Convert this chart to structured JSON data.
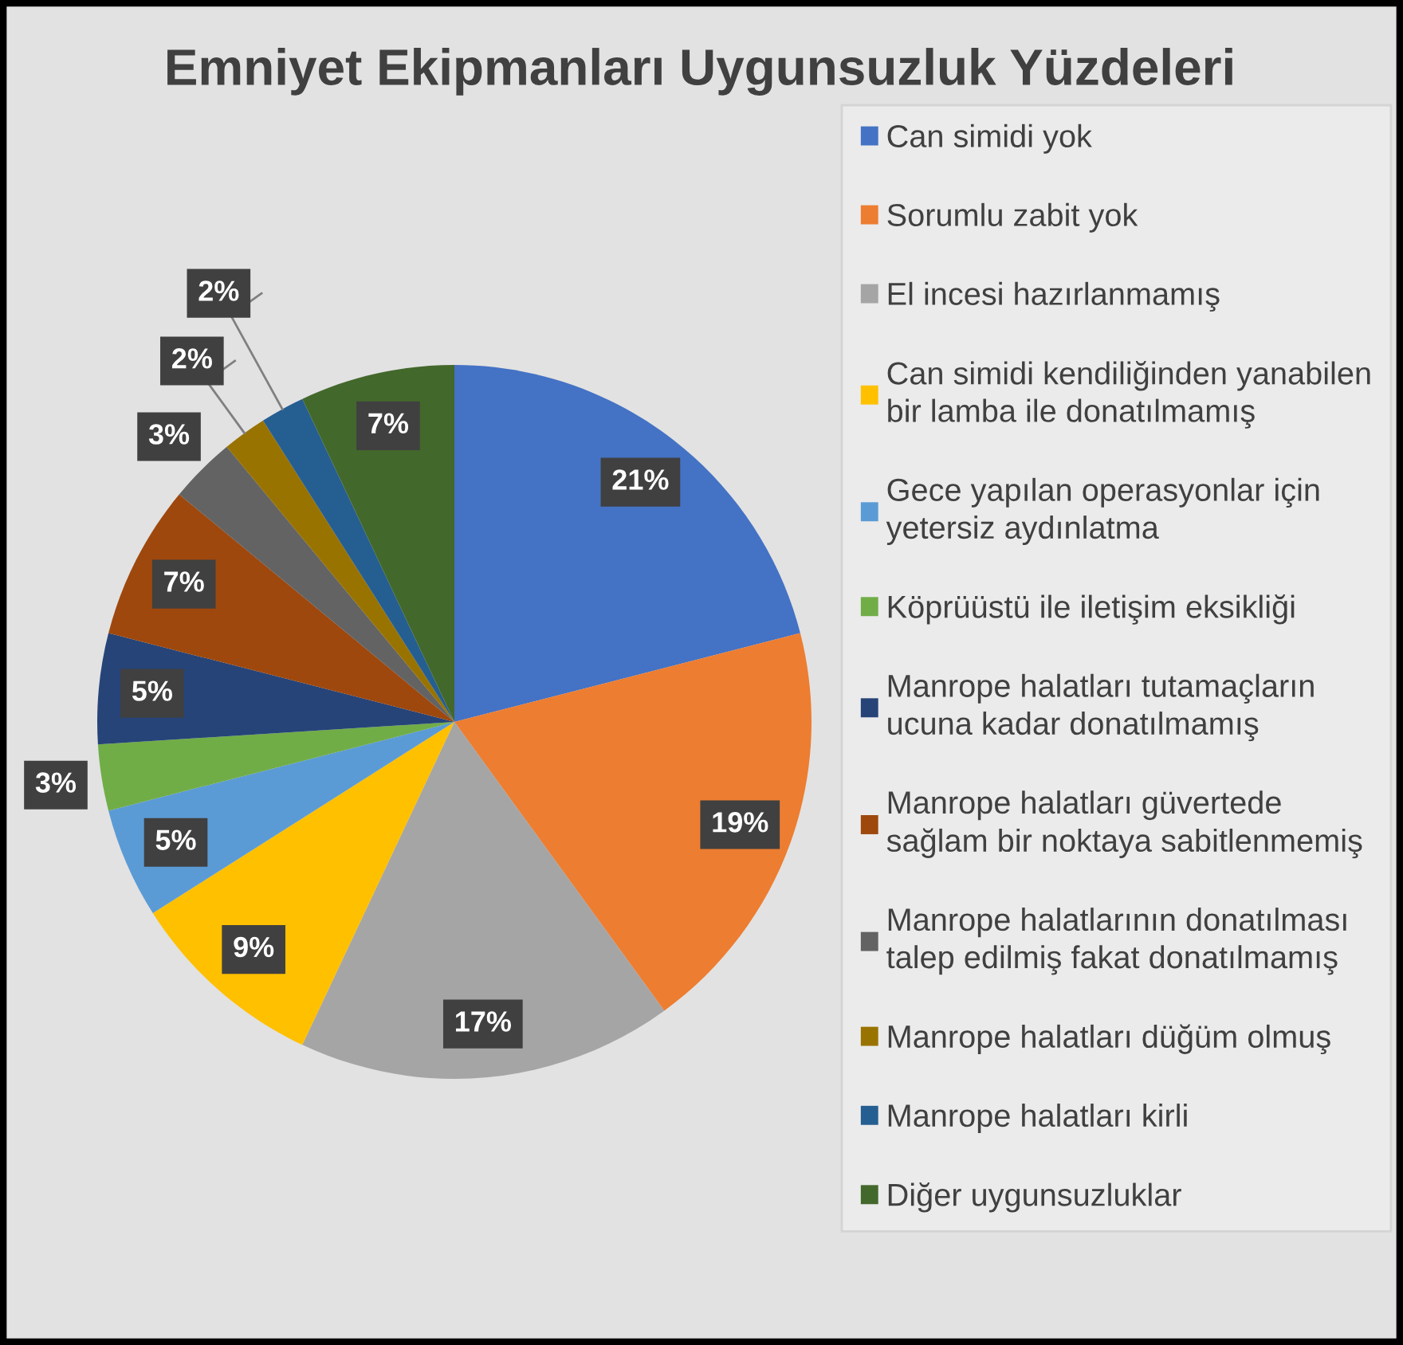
{
  "chart_data": {
    "type": "pie",
    "title": "Emniyet Ekipmanları Uygunsuzluk Yüzdeleri",
    "categories": [
      "Can simidi yok",
      "Sorumlu zabit yok",
      "El incesi hazırlanmamış",
      "Can simidi kendiliğinden yanabilen\nbir lamba ile donatılmamış",
      "Gece yapılan operasyonlar için\nyetersiz aydınlatma",
      "Köprüüstü ile iletişim eksikliği",
      "Manrope halatları tutamaçların\nucuna kadar donatılmamış",
      "Manrope halatları güvertede\nsağlam bir noktaya sabitlenmemiş",
      "Manrope halatlarının donatılması\ntalep edilmiş fakat donatılmamış",
      "Manrope halatları düğüm olmuş",
      "Manrope halatları kirli",
      "Diğer uygunsuzluklar"
    ],
    "values": [
      21,
      19,
      17,
      9,
      5,
      3,
      5,
      7,
      3,
      2,
      2,
      7
    ],
    "colors": [
      "#4472c4",
      "#ed7d31",
      "#a5a5a5",
      "#ffc000",
      "#5b9bd5",
      "#70ad47",
      "#264478",
      "#9e480e",
      "#636363",
      "#997300",
      "#255e91",
      "#43682b"
    ],
    "value_labels": [
      "21%",
      "19%",
      "17%",
      "9%",
      "5%",
      "3%",
      "5%",
      "7%",
      "3%",
      "2%",
      "2%",
      "7%"
    ],
    "legend": "right"
  }
}
